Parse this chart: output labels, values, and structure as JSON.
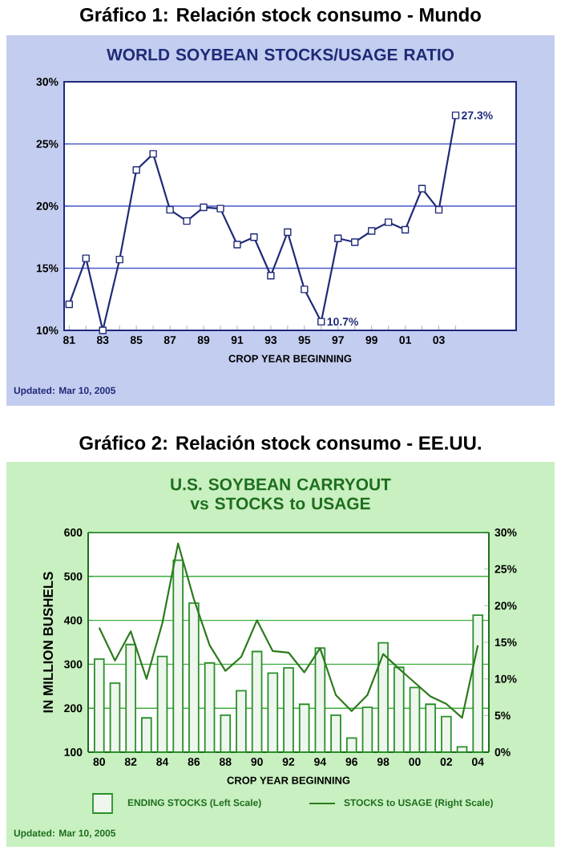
{
  "chart_data": [
    {
      "type": "line",
      "title": "Gráfico 1: Relación stock consumo - Mundo",
      "subtitle": "WORLD SOYBEAN STOCKS/USAGE RATIO",
      "xlabel": "CROP YEAR BEGINNING",
      "categories": [
        "81",
        null,
        "83",
        null,
        "85",
        null,
        "87",
        null,
        "89",
        null,
        "91",
        null,
        "93",
        null,
        "95",
        null,
        "97",
        null,
        "99",
        null,
        "01",
        null,
        "03",
        null
      ],
      "series": [
        {
          "color": "#1f2a78",
          "values": [
            12.1,
            15.8,
            10.0,
            15.7,
            22.9,
            24.2,
            19.7,
            18.8,
            19.9,
            19.8,
            16.9,
            17.5,
            14.4,
            17.9,
            13.3,
            10.7,
            17.4,
            17.1,
            18.0,
            18.7,
            18.1,
            21.4,
            19.7,
            27.3
          ],
          "value_labels": [
            null,
            null,
            null,
            null,
            null,
            null,
            null,
            null,
            null,
            null,
            null,
            null,
            null,
            null,
            null,
            "10.7%",
            null,
            null,
            null,
            null,
            null,
            null,
            null,
            "27.3%"
          ]
        }
      ],
      "ylim": [
        10,
        30
      ],
      "yticks": [
        {
          "value": 10,
          "label": "10%"
        },
        {
          "value": 15,
          "label": "15%"
        },
        {
          "value": 20,
          "label": "20%"
        },
        {
          "value": 25,
          "label": "25%"
        },
        {
          "value": 30,
          "label": "30%"
        }
      ],
      "grid": "y",
      "marker": "square",
      "annotations": [
        "Updated: Mar 10, 2005"
      ]
    },
    {
      "type": "bar",
      "title": "Gráfico 2: Relación stock consumo - EE.UU.",
      "subtitle": "U.S. SOYBEAN CARRYOUT vs STOCKS to USAGE",
      "xlabel": "CROP YEAR BEGINNING",
      "ylabel": "IN MILLION BUSHELS",
      "categories": [
        "80",
        null,
        "82",
        null,
        "84",
        null,
        "86",
        null,
        "88",
        null,
        "90",
        null,
        "92",
        null,
        "94",
        null,
        "96",
        null,
        "98",
        null,
        "00",
        null,
        "02",
        null,
        "04"
      ],
      "series": [
        {
          "name": "ENDING STOCKS (Left Scale)",
          "type": "bar",
          "color": "#2a8f2a",
          "values": [
            312,
            257,
            345,
            178,
            318,
            537,
            439,
            303,
            184,
            240,
            329,
            280,
            292,
            209,
            337,
            184,
            132,
            202,
            349,
            293,
            247,
            209,
            181,
            112,
            412
          ]
        },
        {
          "name": "STOCKS to USAGE (Right Scale)",
          "type": "line",
          "axis": "y2",
          "color": "#2d7a1e",
          "values": [
            17.0,
            12.5,
            16.5,
            10.0,
            17.6,
            28.5,
            20.9,
            14.6,
            11.1,
            13.0,
            18.0,
            13.8,
            13.6,
            10.9,
            14.2,
            7.8,
            5.6,
            7.8,
            13.4,
            11.4,
            9.5,
            7.6,
            6.6,
            4.7,
            14.6
          ]
        }
      ],
      "ylim": [
        100,
        600
      ],
      "yticks": [
        100,
        200,
        300,
        400,
        500,
        600
      ],
      "y2lim": [
        0,
        30
      ],
      "y2ticks": [
        {
          "value": 0,
          "label": "0%"
        },
        {
          "value": 5,
          "label": "5%"
        },
        {
          "value": 10,
          "label": "10%"
        },
        {
          "value": 15,
          "label": "15%"
        },
        {
          "value": 20,
          "label": "20%"
        },
        {
          "value": 25,
          "label": "25%"
        },
        {
          "value": 30,
          "label": "30%"
        }
      ],
      "grid": "y",
      "legend": "bottom",
      "annotations": [
        "Updated: Mar 10, 2005"
      ]
    }
  ]
}
